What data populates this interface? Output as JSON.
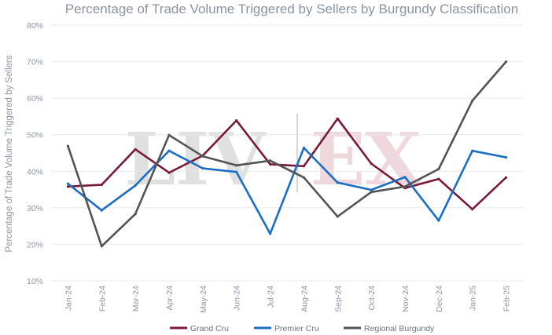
{
  "chart_data": {
    "type": "line",
    "title": "Percentage of Trade Volume Triggered by Sellers by Burgundy Classification",
    "xlabel": "",
    "ylabel": "Percentage of Trade Volume Triggered by Sellers",
    "ylim": [
      10,
      80
    ],
    "yticks": [
      10,
      20,
      30,
      40,
      50,
      60,
      70,
      80
    ],
    "ytick_labels": [
      "10%",
      "20%",
      "30%",
      "40%",
      "50%",
      "60%",
      "70%",
      "80%"
    ],
    "categories": [
      "Jan-24",
      "Feb-24",
      "Mar-24",
      "Apr-24",
      "May-24",
      "Jun-24",
      "Jul-24",
      "Aug-24",
      "Sep-24",
      "Oct-24",
      "Nov-24",
      "Dec-24",
      "Jan-25",
      "Feb-25"
    ],
    "grid": "horizontal",
    "legend_position": "bottom",
    "series": [
      {
        "name": "Grand Cru",
        "color": "#7a1a3a",
        "values": [
          35.8,
          36.3,
          46.0,
          39.6,
          44.3,
          53.9,
          41.9,
          41.4,
          54.4,
          42.1,
          35.4,
          37.9,
          29.6,
          38.3
        ]
      },
      {
        "name": "Premier Cru",
        "color": "#1a6fc4",
        "values": [
          36.6,
          29.3,
          36.1,
          45.6,
          40.8,
          39.8,
          22.9,
          46.4,
          36.9,
          34.9,
          38.4,
          26.5,
          45.6,
          43.8
        ]
      },
      {
        "name": "Regional Burgundy",
        "color": "#545454",
        "values": [
          46.9,
          19.5,
          28.3,
          49.9,
          44.1,
          41.6,
          42.9,
          38.3,
          27.6,
          34.3,
          35.8,
          40.6,
          59.3,
          70.0
        ]
      }
    ]
  },
  "watermark": {
    "left": "LIV",
    "right": "EX",
    "left_color": "#c8c8c8",
    "right_color": "#e6c2cb"
  }
}
